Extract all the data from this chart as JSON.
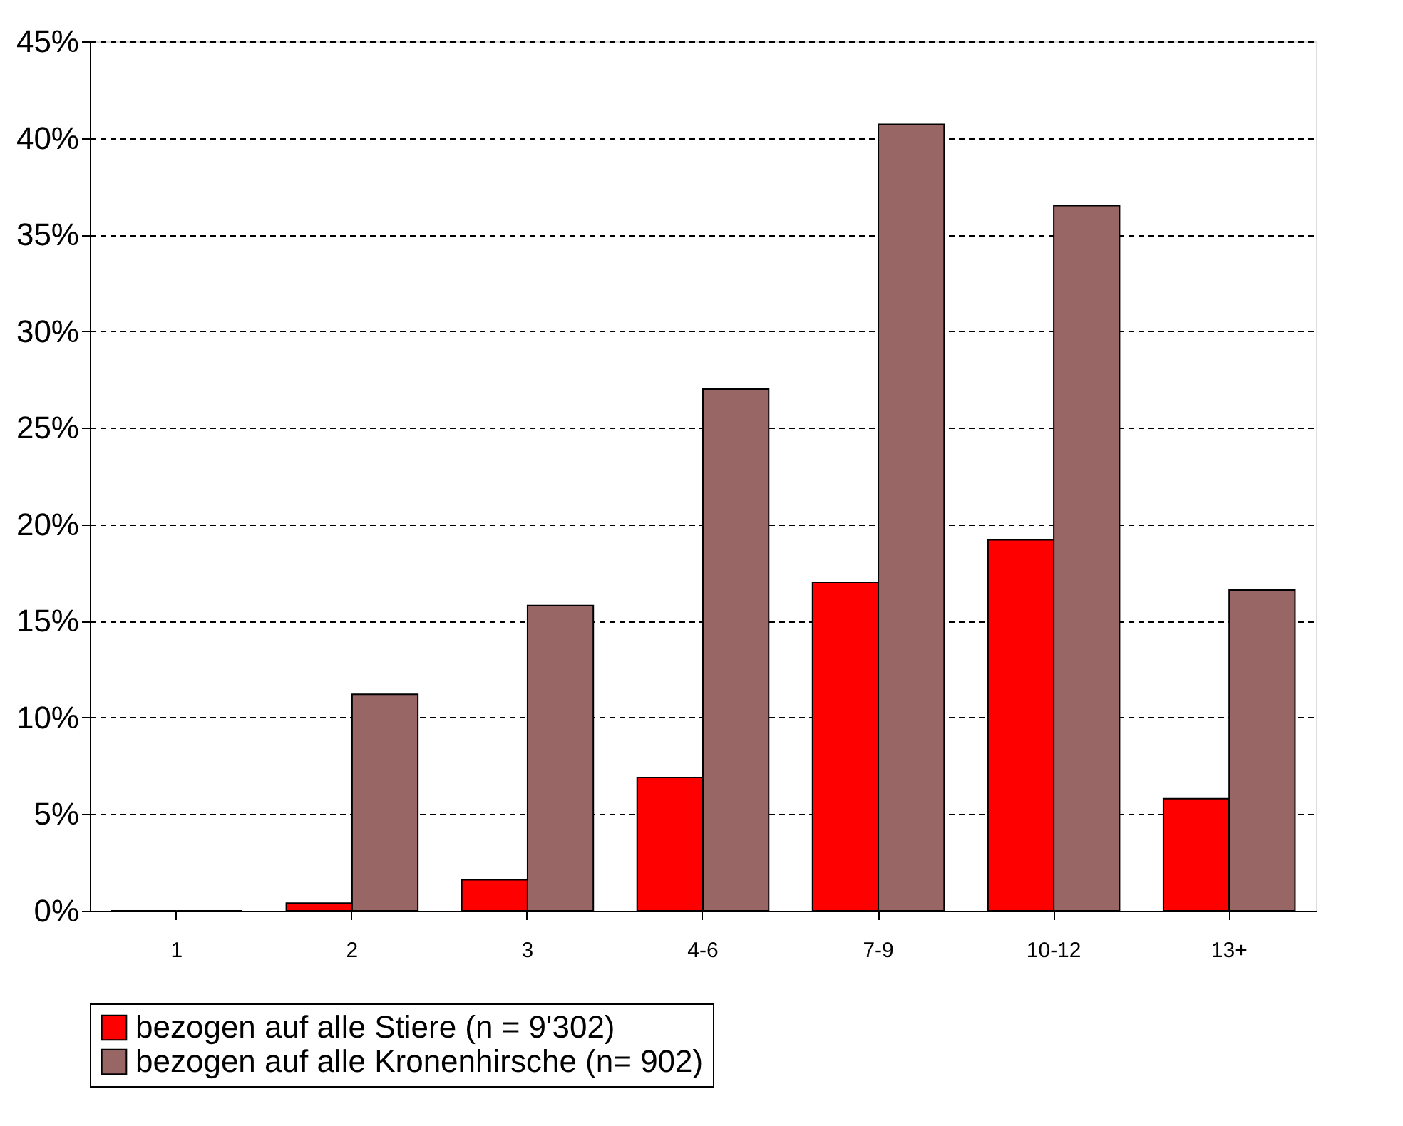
{
  "chart_data": {
    "type": "bar",
    "categories": [
      "1",
      "2",
      "3",
      "4-6",
      "7-9",
      "10-12",
      "13+"
    ],
    "series": [
      {
        "name": "bezogen auf alle Stiere (n = 9'302)",
        "color": "#ff0000",
        "values": [
          0,
          0.4,
          1.6,
          6.9,
          17.0,
          19.2,
          5.8
        ]
      },
      {
        "name": "bezogen auf alle Kronenhirsche (n= 902)",
        "color": "#996666",
        "values": [
          0,
          11.2,
          15.8,
          27.0,
          40.7,
          36.5,
          16.6
        ]
      }
    ],
    "ylim": [
      0,
      45
    ],
    "yticks": [
      {
        "value": 0,
        "label": "0%"
      },
      {
        "value": 5,
        "label": "5%"
      },
      {
        "value": 10,
        "label": "10%"
      },
      {
        "value": 15,
        "label": "15%"
      },
      {
        "value": 20,
        "label": "20%"
      },
      {
        "value": 25,
        "label": "25%"
      },
      {
        "value": 30,
        "label": "30%"
      },
      {
        "value": 35,
        "label": "35%"
      },
      {
        "value": 40,
        "label": "40%"
      },
      {
        "value": 45,
        "label": "45%"
      }
    ],
    "grid": "y",
    "legend": "bottom"
  }
}
